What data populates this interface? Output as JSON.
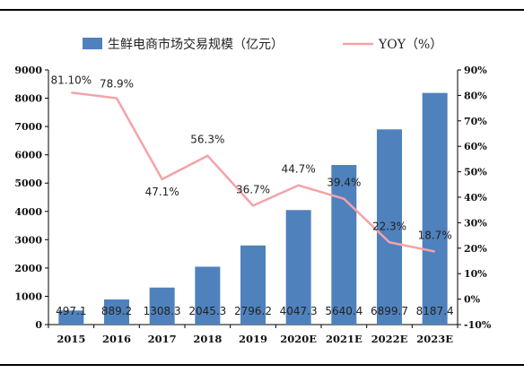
{
  "chart_data": {
    "type": "bar+line",
    "categories": [
      "2015",
      "2016",
      "2017",
      "2018",
      "2019",
      "2020E",
      "2021E",
      "2022E",
      "2023E"
    ],
    "series": [
      {
        "name": "生鲜电商市场交易规模（亿元）",
        "kind": "bar",
        "axis": "left",
        "color": "#4f81bd",
        "values": [
          497.1,
          889.2,
          1308.3,
          2045.3,
          2796.2,
          4047.3,
          5640.4,
          6899.7,
          8187.4
        ],
        "labels": [
          "497.1",
          "889.2",
          "1308.3",
          "2045.3",
          "2796.2",
          "4047.3",
          "5640.4",
          "6899.7",
          "8187.4"
        ]
      },
      {
        "name": "YOY（%）",
        "kind": "line",
        "axis": "right",
        "color": "#f4a3a8",
        "values": [
          81.1,
          78.9,
          47.1,
          56.3,
          36.7,
          44.7,
          39.4,
          22.3,
          18.7
        ],
        "labels": [
          "81.10%",
          "78.9%",
          "47.1%",
          "56.3%",
          "36.7%",
          "44.7%",
          "39.4%",
          "22.3%",
          "18.7%"
        ]
      }
    ],
    "y_left": {
      "ylim": [
        0,
        9000
      ],
      "ticks": [
        "0",
        "1000",
        "2000",
        "3000",
        "4000",
        "5000",
        "6000",
        "7000",
        "8000",
        "9000"
      ]
    },
    "y_right": {
      "ylim": [
        -10,
        90
      ],
      "ticks": [
        "-10%",
        "0%",
        "10%",
        "20%",
        "30%",
        "40%",
        "50%",
        "60%",
        "70%",
        "80%",
        "90%"
      ]
    },
    "legend_position": "top-center",
    "grid": false
  }
}
